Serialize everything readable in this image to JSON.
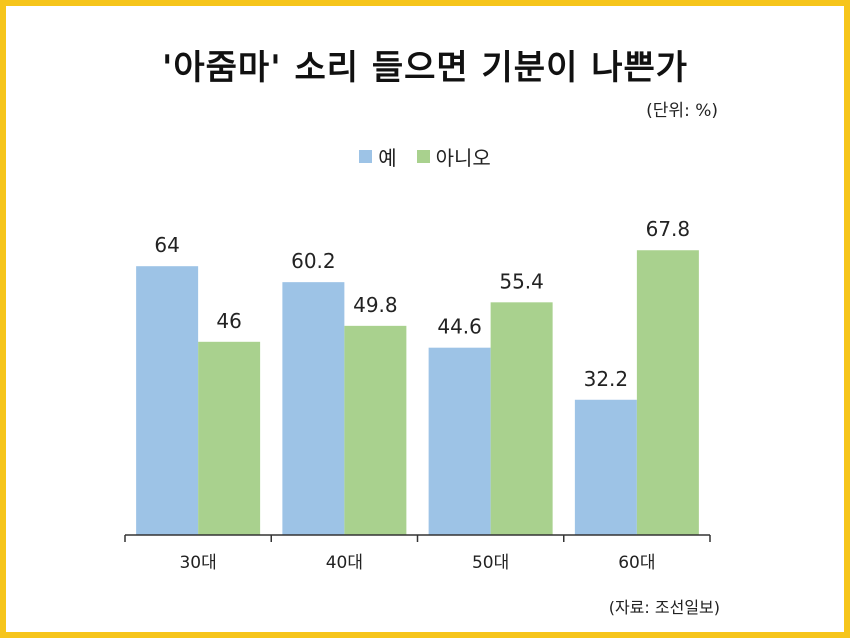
{
  "chart_data": {
    "type": "bar",
    "title": "'아줌마' 소리 들으면 기분이 나쁜가",
    "unit_note": "(단위: %)",
    "categories": [
      "30대",
      "40대",
      "50대",
      "60대"
    ],
    "series": [
      {
        "name": "예",
        "values": [
          64,
          60.2,
          44.6,
          32.2
        ],
        "color": "#9dc3e6"
      },
      {
        "name": "아니오",
        "values": [
          46,
          49.8,
          55.4,
          67.8
        ],
        "color": "#a9d18e"
      }
    ],
    "ylim": [
      0,
      70
    ],
    "grid": false,
    "legend_position": "top"
  },
  "source": "(자료: 조선일보)",
  "colors": {
    "border": "#f6c51b",
    "axis": "#333333"
  }
}
